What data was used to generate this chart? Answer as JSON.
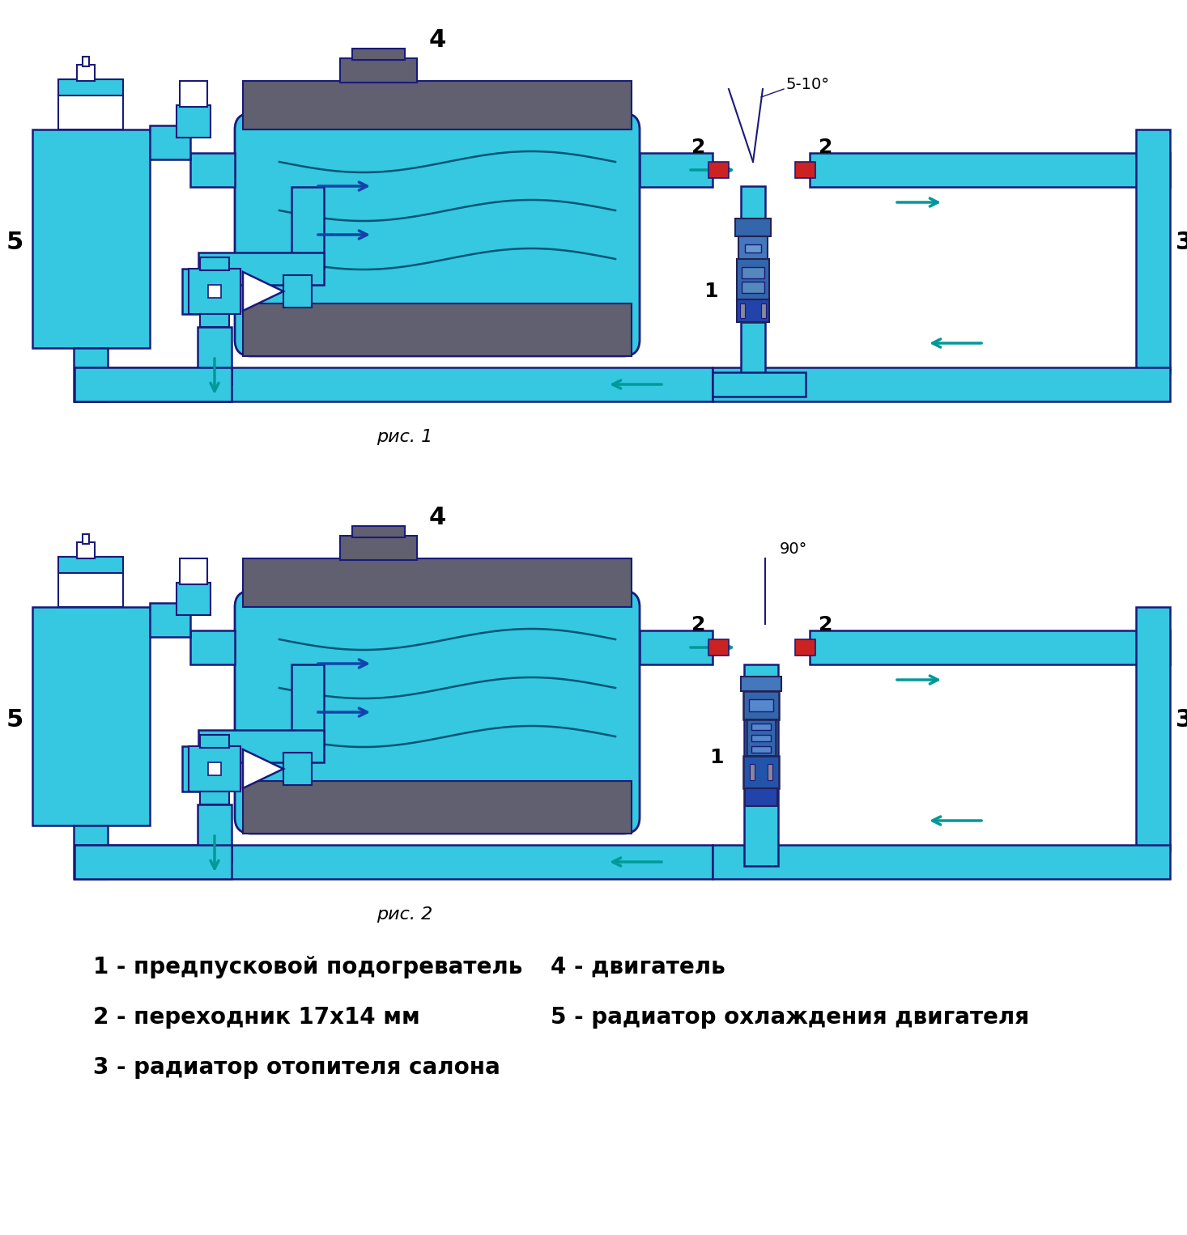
{
  "bg": "#ffffff",
  "cyan": "#35C8E0",
  "cyan2": "#55D8F0",
  "dark_gray": "#606070",
  "outline": "#1a1a7a",
  "red": "#CC2222",
  "blue_arr": "#1144AA",
  "teal_arr": "#009999",
  "text": "#000000",
  "fig_w": 14.66,
  "fig_h": 15.26,
  "caption1": "рис. 1",
  "caption2": "рис. 2",
  "angle1": "5-10°",
  "angle2": "90°",
  "legend": [
    [
      "1 - предпусковой подогреватель",
      "4 - двигатель"
    ],
    [
      "2 - переходник 17х14 мм",
      "5 - радиатор охлаждения двигателя"
    ],
    [
      "3 - радиатор отопителя салона",
      ""
    ]
  ]
}
